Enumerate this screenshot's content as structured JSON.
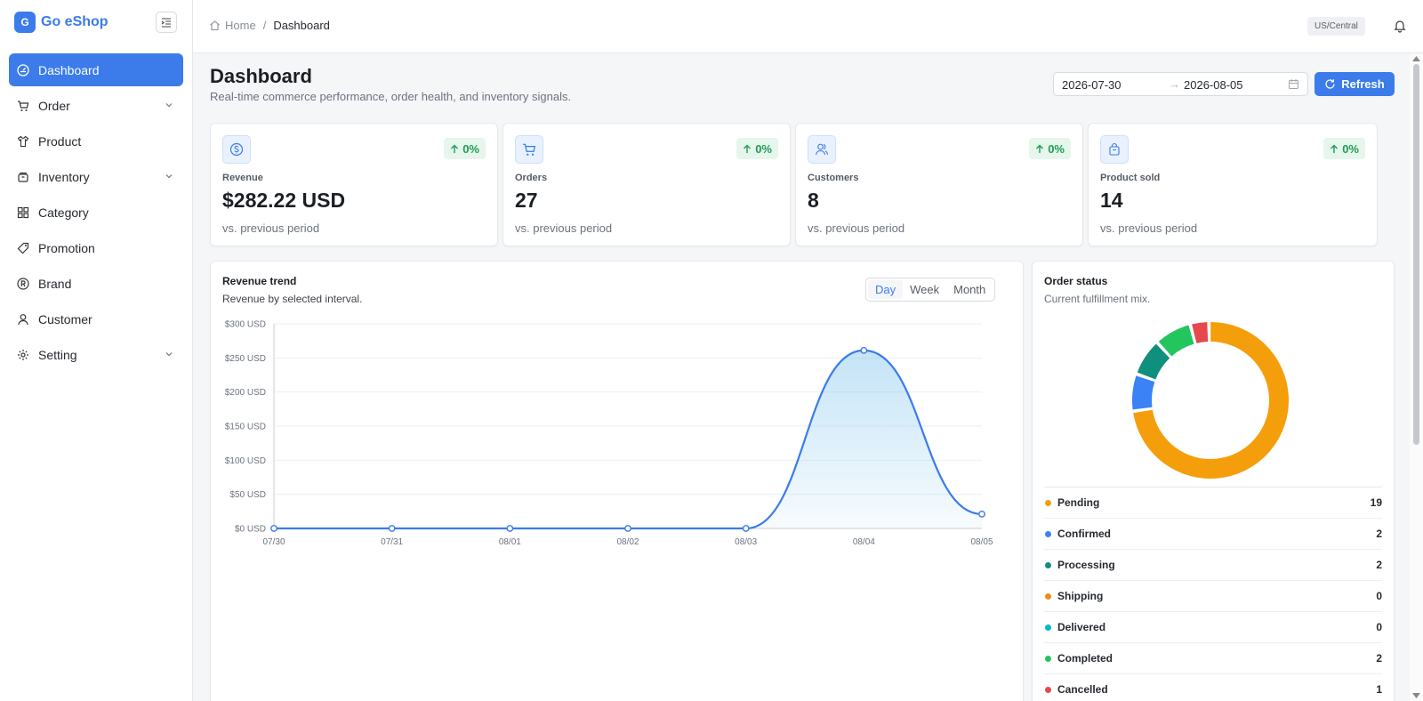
{
  "brand": {
    "logo_letter": "G",
    "name": "Go eShop"
  },
  "sidebar": {
    "items": [
      {
        "label": "Dashboard",
        "icon": "dashboard-icon",
        "active": true,
        "has_children": false
      },
      {
        "label": "Order",
        "icon": "cart-icon",
        "active": false,
        "has_children": true
      },
      {
        "label": "Product",
        "icon": "shirt-icon",
        "active": false,
        "has_children": false
      },
      {
        "label": "Inventory",
        "icon": "box-icon",
        "active": false,
        "has_children": true
      },
      {
        "label": "Category",
        "icon": "grid-icon",
        "active": false,
        "has_children": false
      },
      {
        "label": "Promotion",
        "icon": "tag-icon",
        "active": false,
        "has_children": false
      },
      {
        "label": "Brand",
        "icon": "registered-icon",
        "active": false,
        "has_children": false
      },
      {
        "label": "Customer",
        "icon": "user-icon",
        "active": false,
        "has_children": false
      },
      {
        "label": "Setting",
        "icon": "gear-icon",
        "active": false,
        "has_children": true
      }
    ]
  },
  "topbar": {
    "breadcrumb": {
      "home": "Home",
      "separator": "/",
      "current": "Dashboard"
    },
    "timezone": "US/Central"
  },
  "header": {
    "title": "Dashboard",
    "subtitle": "Real-time commerce performance, order health, and inventory signals.",
    "date_from": "2026-07-30",
    "date_arrow": "→",
    "date_to": "2026-08-05",
    "refresh_label": "Refresh"
  },
  "stats": [
    {
      "label": "Revenue",
      "value": "$282.22 USD",
      "change": "0%",
      "footnote": "vs. previous period",
      "icon": "dollar-icon"
    },
    {
      "label": "Orders",
      "value": "27",
      "change": "0%",
      "footnote": "vs. previous period",
      "icon": "cart-icon"
    },
    {
      "label": "Customers",
      "value": "8",
      "change": "0%",
      "footnote": "vs. previous period",
      "icon": "users-icon"
    },
    {
      "label": "Product sold",
      "value": "14",
      "change": "0%",
      "footnote": "vs. previous period",
      "icon": "bag-icon"
    }
  ],
  "revenue_trend": {
    "title": "Revenue trend",
    "subtitle": "Revenue by selected interval.",
    "intervals": [
      "Day",
      "Week",
      "Month"
    ],
    "selected_interval": "Day"
  },
  "chart_data": {
    "type": "area",
    "categories": [
      "07/30",
      "07/31",
      "08/01",
      "08/02",
      "08/03",
      "08/04",
      "08/05"
    ],
    "series": [
      {
        "values": [
          0,
          0,
          0,
          0,
          0,
          261,
          21
        ]
      }
    ],
    "y_ticks": [
      "$0 USD",
      "$50 USD",
      "$100 USD",
      "$150 USD",
      "$200 USD",
      "$250 USD",
      "$300 USD"
    ],
    "ylim": [
      0,
      300
    ],
    "grid": true,
    "color": "#3b7bea"
  },
  "order_status": {
    "title": "Order status",
    "subtitle": "Current fulfillment mix.",
    "items": [
      {
        "label": "Pending",
        "count": 19,
        "color": "#f59e0b"
      },
      {
        "label": "Confirmed",
        "count": 2,
        "color": "#3b82f6"
      },
      {
        "label": "Processing",
        "count": 2,
        "color": "#0f8f7e"
      },
      {
        "label": "Shipping",
        "count": 0,
        "color": "#f08a1c"
      },
      {
        "label": "Delivered",
        "count": 0,
        "color": "#06b6d4"
      },
      {
        "label": "Completed",
        "count": 2,
        "color": "#22c55e"
      },
      {
        "label": "Cancelled",
        "count": 1,
        "color": "#e5484d"
      }
    ]
  }
}
